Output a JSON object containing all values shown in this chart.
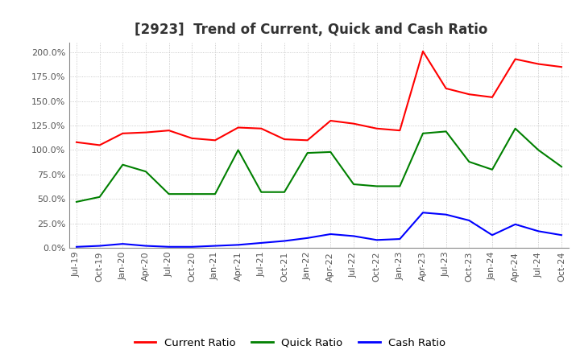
{
  "title": "[2923]  Trend of Current, Quick and Cash Ratio",
  "labels": [
    "Jul-19",
    "Oct-19",
    "Jan-20",
    "Apr-20",
    "Jul-20",
    "Oct-20",
    "Jan-21",
    "Apr-21",
    "Jul-21",
    "Oct-21",
    "Jan-22",
    "Apr-22",
    "Jul-22",
    "Oct-22",
    "Jan-23",
    "Apr-23",
    "Jul-23",
    "Oct-23",
    "Jan-24",
    "Apr-24",
    "Jul-24",
    "Oct-24"
  ],
  "current_ratio": [
    1.08,
    1.05,
    1.17,
    1.18,
    1.2,
    1.12,
    1.1,
    1.23,
    1.22,
    1.11,
    1.1,
    1.3,
    1.27,
    1.22,
    1.2,
    2.01,
    1.63,
    1.57,
    1.54,
    1.93,
    1.88,
    1.85
  ],
  "quick_ratio": [
    0.47,
    0.52,
    0.85,
    0.78,
    0.55,
    0.55,
    0.55,
    1.0,
    0.57,
    0.57,
    0.97,
    0.98,
    0.65,
    0.63,
    0.63,
    1.17,
    1.19,
    0.88,
    0.8,
    1.22,
    1.0,
    0.83
  ],
  "cash_ratio": [
    0.01,
    0.02,
    0.04,
    0.02,
    0.01,
    0.01,
    0.02,
    0.03,
    0.05,
    0.07,
    0.1,
    0.14,
    0.12,
    0.08,
    0.09,
    0.36,
    0.34,
    0.28,
    0.13,
    0.24,
    0.17,
    0.13
  ],
  "current_color": "#FF0000",
  "quick_color": "#008000",
  "cash_color": "#0000FF",
  "line_width": 1.5,
  "ylim": [
    0.0,
    2.1
  ],
  "yticks": [
    0.0,
    0.25,
    0.5,
    0.75,
    1.0,
    1.25,
    1.5,
    1.75,
    2.0
  ],
  "ytick_labels": [
    "0.0%",
    "25.0%",
    "50.0%",
    "75.0%",
    "100.0%",
    "125.0%",
    "150.0%",
    "175.0%",
    "200.0%"
  ],
  "background_color": "#FFFFFF",
  "plot_bg_color": "#FFFFFF",
  "grid_color": "#BBBBBB",
  "legend_labels": [
    "Current Ratio",
    "Quick Ratio",
    "Cash Ratio"
  ],
  "title_fontsize": 12,
  "tick_fontsize": 8,
  "legend_fontsize": 9.5,
  "title_color": "#333333"
}
